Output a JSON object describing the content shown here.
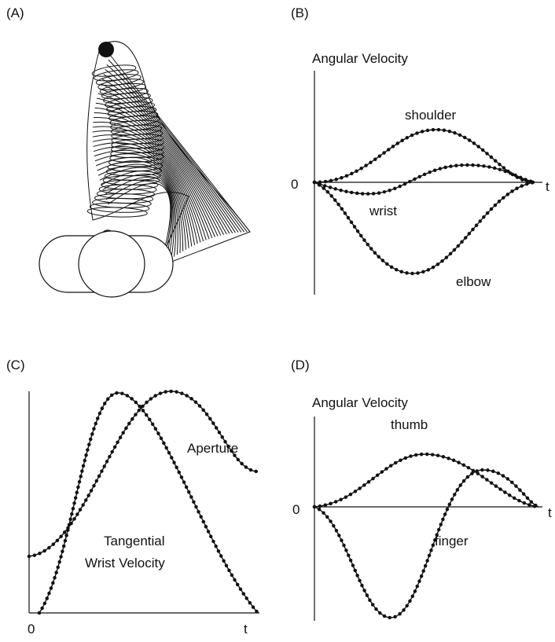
{
  "panels": [
    {
      "label": "(A)"
    },
    {
      "label": "(B)",
      "axis_title": "Angular Velocity",
      "origin": "0",
      "t": "t",
      "curve_labels": [
        "shoulder",
        "wrist",
        "elbow"
      ]
    },
    {
      "label": "(C)",
      "origin": "0",
      "t": "t",
      "curve_labels": [
        "Aperture",
        "Tangential",
        "Wrist Velocity"
      ]
    },
    {
      "label": "(D)",
      "axis_title": "Angular Velocity",
      "origin": "0",
      "t": "t",
      "curve_labels": [
        "thumb",
        "finger"
      ]
    }
  ]
}
